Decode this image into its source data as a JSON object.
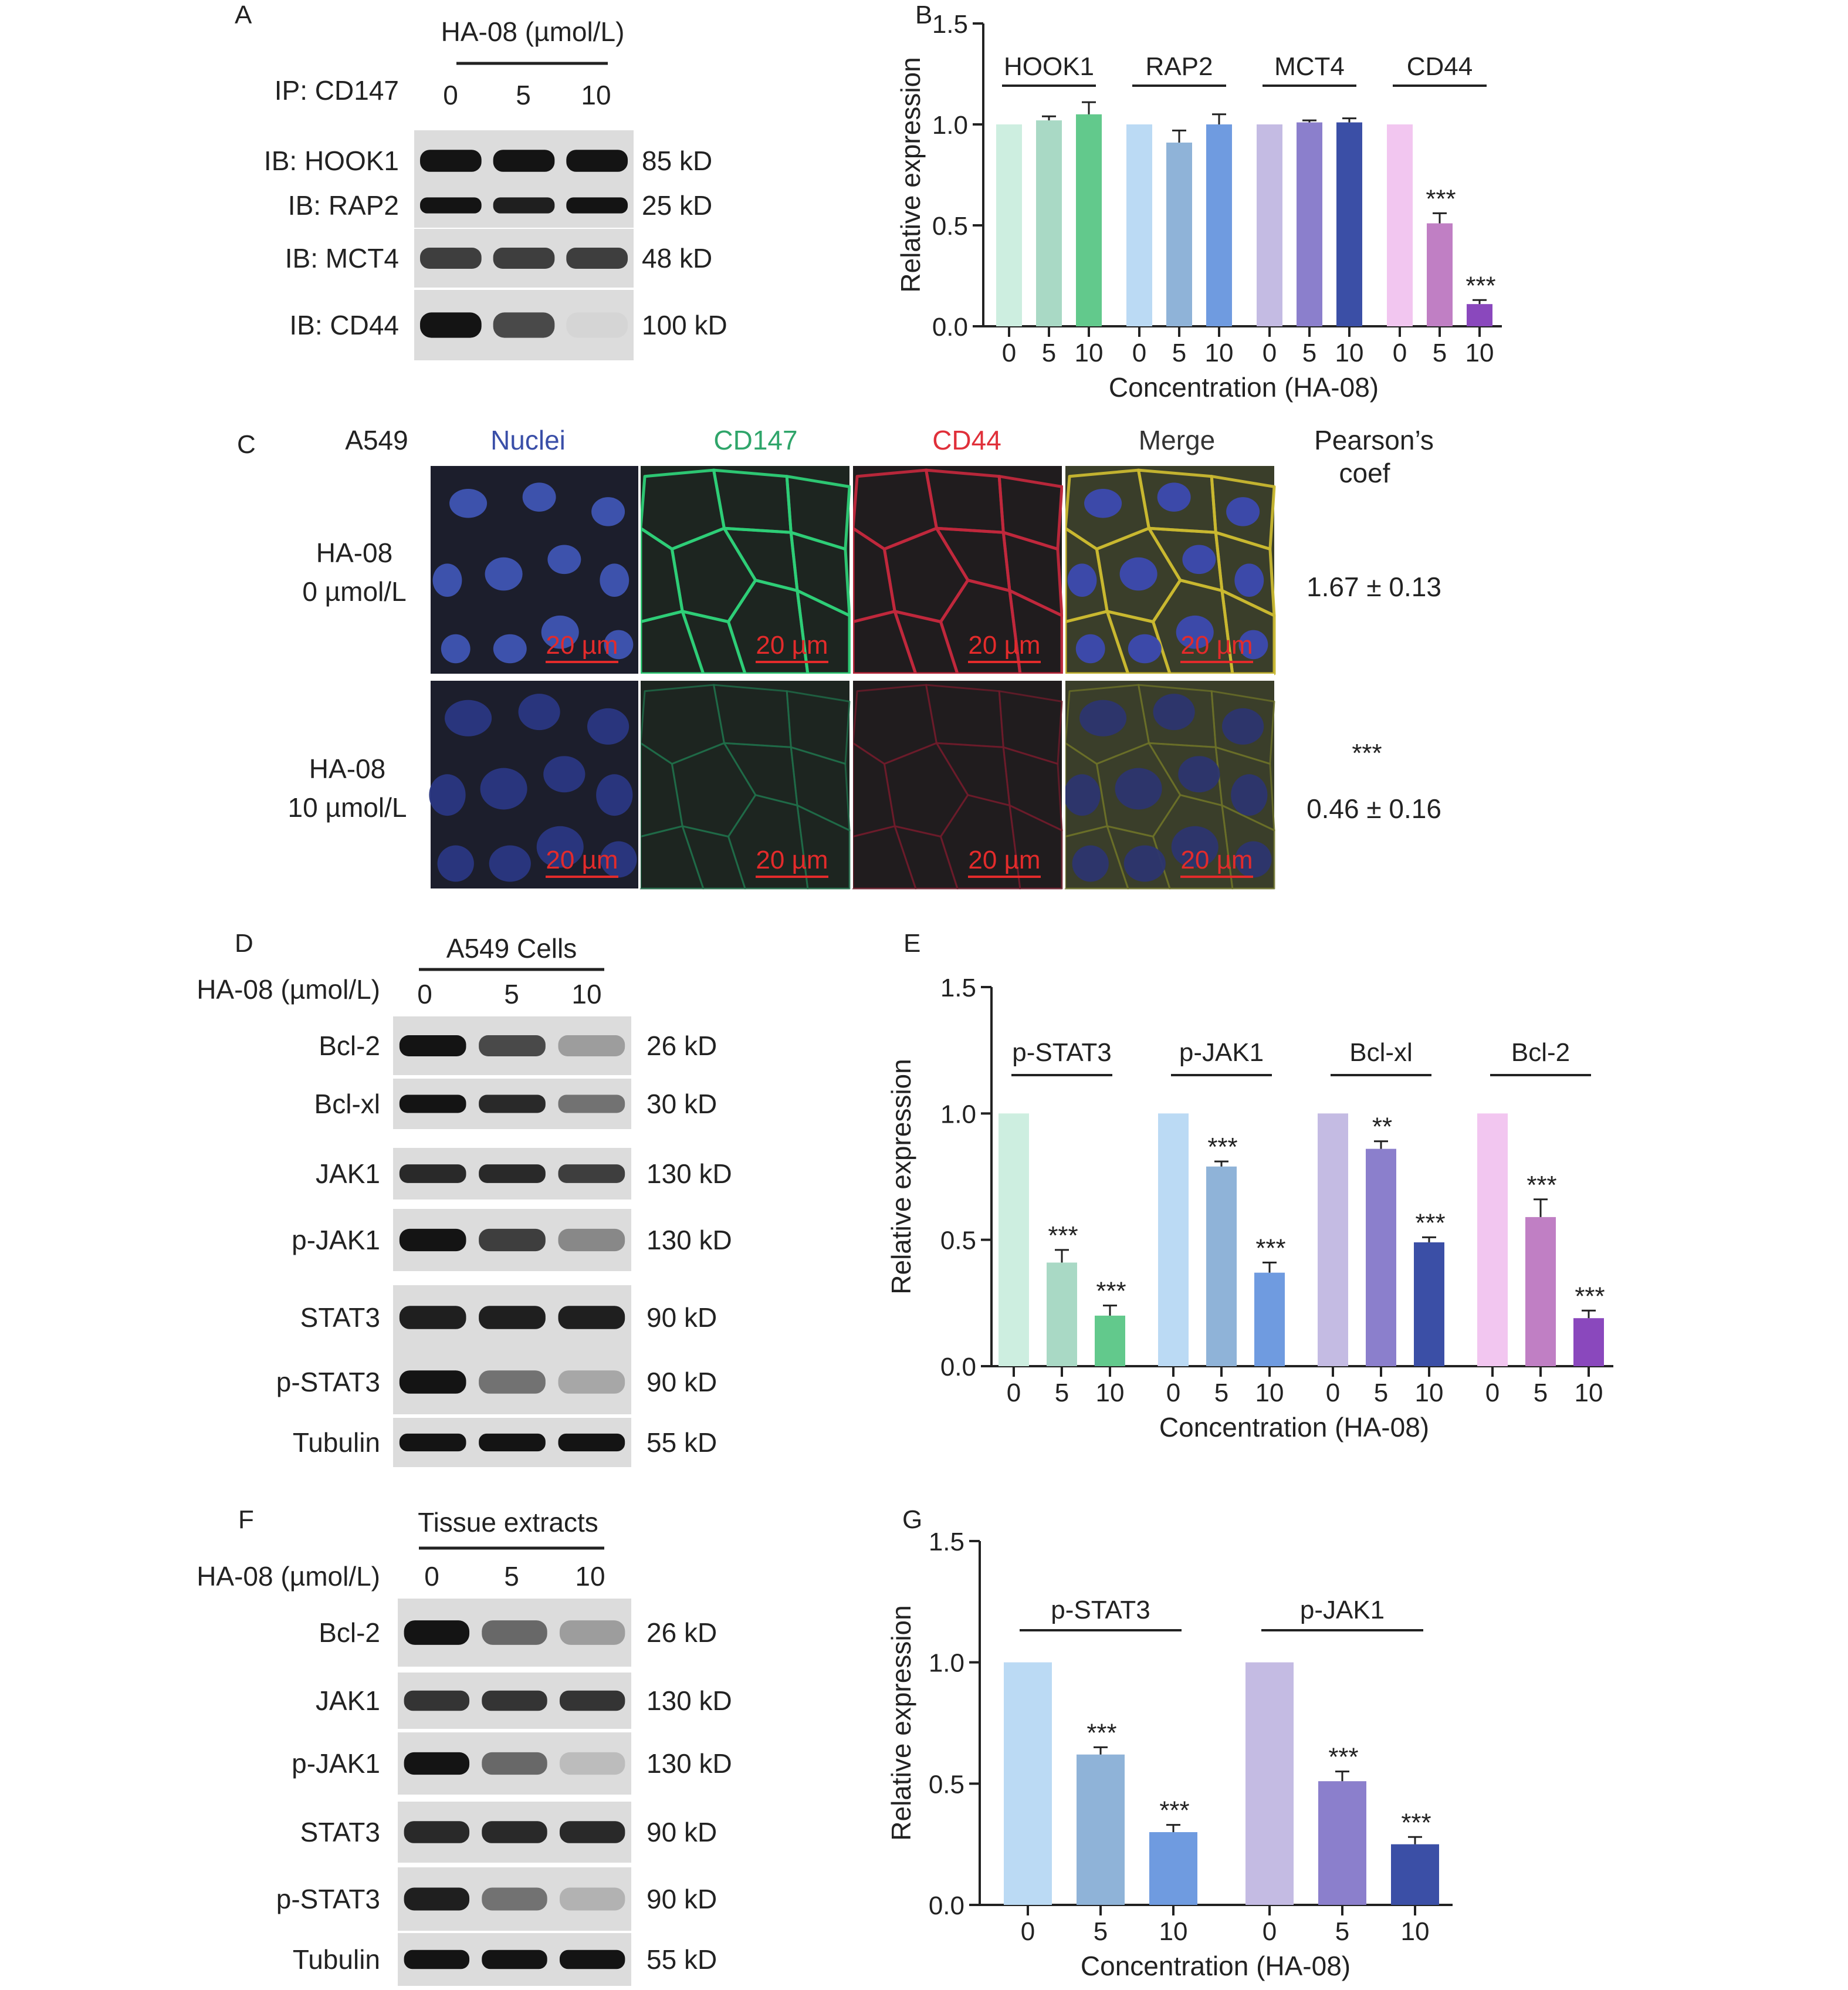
{
  "panelA": {
    "letter": "A",
    "header": "HA-08 (µmol/L)",
    "ip_label": "IP: CD147",
    "lanes": [
      "0",
      "5",
      "10"
    ],
    "blots": [
      {
        "label": "IB: HOOK1",
        "size": "85 kD",
        "intensity": [
          1.0,
          1.0,
          1.0
        ]
      },
      {
        "label": "IB: RAP2",
        "size": "25 kD",
        "intensity": [
          1.0,
          0.95,
          1.0
        ]
      },
      {
        "label": "IB: MCT4",
        "size": "48 kD",
        "intensity": [
          0.8,
          0.8,
          0.8
        ]
      },
      {
        "label": "IB: CD44",
        "size": "100 kD",
        "intensity": [
          1.0,
          0.75,
          0.08
        ]
      }
    ]
  },
  "panelC": {
    "letter": "C",
    "cell_line": "A549",
    "channels": [
      "Nuclei",
      "CD147",
      "CD44",
      "Merge"
    ],
    "channel_colors": [
      "#3a4fa8",
      "#2fa56a",
      "#e0303a",
      "#333333"
    ],
    "coef_header_line1": "Pearson’s",
    "coef_header_line2": "coef",
    "scale_bar": "20 µm",
    "rows": [
      {
        "label_line1": "HA-08",
        "label_line2": "0 µmol/L",
        "coef": "1.67 ± 0.13",
        "sig": ""
      },
      {
        "label_line1": "HA-08",
        "label_line2": "10 µmol/L",
        "coef": "0.46 ± 0.16",
        "sig": "***"
      }
    ]
  },
  "panelD": {
    "letter": "D",
    "header": "A549 Cells",
    "treatment_label": "HA-08 (µmol/L)",
    "lanes": [
      "0",
      "5",
      "10"
    ],
    "blots": [
      {
        "label": "Bcl-2",
        "size": "26 kD",
        "intensity": [
          1.0,
          0.75,
          0.35
        ]
      },
      {
        "label": "Bcl-xl",
        "size": "30 kD",
        "intensity": [
          1.0,
          0.9,
          0.55
        ]
      },
      {
        "label": "JAK1",
        "size": "130 kD",
        "intensity": [
          0.9,
          0.9,
          0.8
        ]
      },
      {
        "label": "p-JAK1",
        "size": "130 kD",
        "intensity": [
          1.0,
          0.8,
          0.45
        ]
      },
      {
        "label": "STAT3",
        "size": "90 kD",
        "intensity": [
          0.95,
          0.95,
          0.95
        ]
      },
      {
        "label": "p-STAT3",
        "size": "90 kD",
        "intensity": [
          1.0,
          0.55,
          0.3
        ]
      },
      {
        "label": "Tubulin",
        "size": "55 kD",
        "intensity": [
          1.0,
          1.0,
          1.0
        ]
      }
    ]
  },
  "panelF": {
    "letter": "F",
    "header": "Tissue extracts",
    "treatment_label": "HA-08 (µmol/L)",
    "lanes": [
      "0",
      "5",
      "10"
    ],
    "blots": [
      {
        "label": "Bcl-2",
        "size": "26 kD",
        "intensity": [
          1.0,
          0.6,
          0.35
        ]
      },
      {
        "label": "JAK1",
        "size": "130 kD",
        "intensity": [
          0.85,
          0.85,
          0.85
        ]
      },
      {
        "label": "p-JAK1",
        "size": "130 kD",
        "intensity": [
          1.0,
          0.6,
          0.2
        ]
      },
      {
        "label": "STAT3",
        "size": "90 kD",
        "intensity": [
          0.9,
          0.9,
          0.9
        ]
      },
      {
        "label": "p-STAT3",
        "size": "90 kD",
        "intensity": [
          0.95,
          0.55,
          0.25
        ]
      },
      {
        "label": "Tubulin",
        "size": "55 kD",
        "intensity": [
          1.0,
          1.0,
          1.0
        ]
      }
    ]
  },
  "chart_data": [
    {
      "panel": "B",
      "type": "bar",
      "xlabel": "Concentration (HA-08)",
      "ylabel": "Relative expression",
      "ylim": [
        0,
        1.5
      ],
      "yticks": [
        "0.0",
        "0.5",
        "1.0",
        "1.5"
      ],
      "groups": [
        {
          "name": "HOOK1",
          "categories": [
            "0",
            "5",
            "10"
          ],
          "values": [
            1.0,
            1.02,
            1.05
          ],
          "errors": [
            0,
            0.02,
            0.06
          ],
          "sig": [
            "",
            "",
            ""
          ],
          "colors": [
            "#cdeee0",
            "#a9d9c5",
            "#62c98c"
          ]
        },
        {
          "name": "RAP2",
          "categories": [
            "0",
            "5",
            "10"
          ],
          "values": [
            1.0,
            0.91,
            1.0
          ],
          "errors": [
            0,
            0.06,
            0.05
          ],
          "sig": [
            "",
            "",
            ""
          ],
          "colors": [
            "#bbdaf4",
            "#8fb3d8",
            "#6f9be0"
          ]
        },
        {
          "name": "MCT4",
          "categories": [
            "0",
            "5",
            "10"
          ],
          "values": [
            1.0,
            1.01,
            1.01
          ],
          "errors": [
            0,
            0.01,
            0.02
          ],
          "sig": [
            "",
            "",
            ""
          ],
          "colors": [
            "#c4bbe3",
            "#8b7fcc",
            "#3b4fa6"
          ]
        },
        {
          "name": "CD44",
          "categories": [
            "0",
            "5",
            "10"
          ],
          "values": [
            1.0,
            0.51,
            0.11
          ],
          "errors": [
            0,
            0.05,
            0.02
          ],
          "sig": [
            "",
            "***",
            "***"
          ],
          "colors": [
            "#f2c6f0",
            "#c07fc4",
            "#8a48bd"
          ]
        }
      ]
    },
    {
      "panel": "E",
      "type": "bar",
      "xlabel": "Concentration (HA-08)",
      "ylabel": "Relative expression",
      "ylim": [
        0,
        1.5
      ],
      "yticks": [
        "0.0",
        "0.5",
        "1.0",
        "1.5"
      ],
      "groups": [
        {
          "name": "p-STAT3",
          "categories": [
            "0",
            "5",
            "10"
          ],
          "values": [
            1.0,
            0.41,
            0.2
          ],
          "errors": [
            0,
            0.05,
            0.04
          ],
          "sig": [
            "",
            "***",
            "***"
          ],
          "colors": [
            "#cdeee0",
            "#a9d9c5",
            "#62c98c"
          ]
        },
        {
          "name": "p-JAK1",
          "categories": [
            "0",
            "5",
            "10"
          ],
          "values": [
            1.0,
            0.79,
            0.37
          ],
          "errors": [
            0,
            0.02,
            0.04
          ],
          "sig": [
            "",
            "***",
            "***"
          ],
          "colors": [
            "#bbdaf4",
            "#8fb3d8",
            "#6f9be0"
          ]
        },
        {
          "name": "Bcl-xl",
          "categories": [
            "0",
            "5",
            "10"
          ],
          "values": [
            1.0,
            0.86,
            0.49
          ],
          "errors": [
            0,
            0.03,
            0.02
          ],
          "sig": [
            "",
            "**",
            "***"
          ],
          "colors": [
            "#c4bbe3",
            "#8b7fcc",
            "#3b4fa6"
          ]
        },
        {
          "name": "Bcl-2",
          "categories": [
            "0",
            "5",
            "10"
          ],
          "values": [
            1.0,
            0.59,
            0.19
          ],
          "errors": [
            0,
            0.07,
            0.03
          ],
          "sig": [
            "",
            "***",
            "***"
          ],
          "colors": [
            "#f2c6f0",
            "#c07fc4",
            "#8a48bd"
          ]
        }
      ]
    },
    {
      "panel": "G",
      "type": "bar",
      "xlabel": "Concentration (HA-08)",
      "ylabel": "Relative expression",
      "ylim": [
        0,
        1.5
      ],
      "yticks": [
        "0.0",
        "0.5",
        "1.0",
        "1.5"
      ],
      "groups": [
        {
          "name": "p-STAT3",
          "categories": [
            "0",
            "5",
            "10"
          ],
          "values": [
            1.0,
            0.62,
            0.3
          ],
          "errors": [
            0,
            0.03,
            0.03
          ],
          "sig": [
            "",
            "***",
            "***"
          ],
          "colors": [
            "#bbdaf4",
            "#8fb3d8",
            "#6f9be0"
          ]
        },
        {
          "name": "p-JAK1",
          "categories": [
            "0",
            "5",
            "10"
          ],
          "values": [
            1.0,
            0.51,
            0.25
          ],
          "errors": [
            0,
            0.04,
            0.03
          ],
          "sig": [
            "",
            "***",
            "***"
          ],
          "colors": [
            "#c4bbe3",
            "#8b7fcc",
            "#3b4fa6"
          ]
        }
      ]
    }
  ]
}
